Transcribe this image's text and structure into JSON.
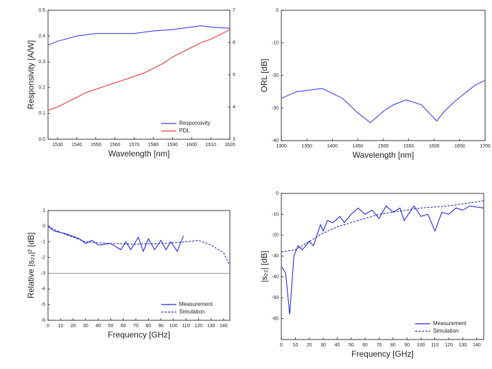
{
  "chart_data": [
    {
      "type": "line",
      "xlabel": "Wavelength  [nm]",
      "ylabel": "Responsivity  [A/W]",
      "xlim": [
        1525,
        1620
      ],
      "xticks": [
        1530,
        1540,
        1550,
        1560,
        1570,
        1580,
        1590,
        1600,
        1610,
        1620
      ],
      "ylim": [
        0,
        0.5
      ],
      "yticks": [
        {
          "value": 0,
          "label": "0.0"
        },
        0.1,
        0.2,
        0.3,
        0.4,
        0.5
      ],
      "y2lim": [
        3,
        7
      ],
      "y2ticks": [
        3,
        4,
        5,
        6,
        7
      ],
      "legend": "lower right",
      "series": [
        {
          "name": "Responsivity",
          "color": "#3b3bf0",
          "x": [
            1525,
            1530,
            1535,
            1540,
            1545,
            1550,
            1560,
            1570,
            1580,
            1590,
            1600,
            1605,
            1610,
            1620
          ],
          "values": [
            0.365,
            0.38,
            0.39,
            0.4,
            0.405,
            0.41,
            0.41,
            0.41,
            0.42,
            0.425,
            0.435,
            0.44,
            0.435,
            0.43
          ]
        },
        {
          "name": "PDL",
          "color": "#f03030",
          "axis": "y2",
          "x": [
            1525,
            1530,
            1535,
            1540,
            1545,
            1550,
            1555,
            1560,
            1565,
            1570,
            1575,
            1580,
            1585,
            1590,
            1595,
            1600,
            1605,
            1610,
            1615,
            1620
          ],
          "values": [
            3.9,
            4.0,
            4.15,
            4.3,
            4.45,
            4.55,
            4.65,
            4.75,
            4.85,
            4.95,
            5.05,
            5.2,
            5.35,
            5.55,
            5.7,
            5.85,
            6.0,
            6.1,
            6.25,
            6.4
          ]
        }
      ]
    },
    {
      "type": "line",
      "xlabel": "Wavelength  [nm]",
      "ylabel": "ORL  [dB]",
      "xlim": [
        1300,
        1700
      ],
      "xticks": [
        1300,
        1350,
        1400,
        1450,
        1500,
        1550,
        1600,
        1650,
        1700
      ],
      "ylim": [
        -40,
        0
      ],
      "yticks": [
        -40,
        -30,
        -20,
        -10,
        0
      ],
      "series": [
        {
          "name": null,
          "color": "#3b3bf0",
          "x": [
            1300,
            1330,
            1380,
            1420,
            1450,
            1475,
            1500,
            1520,
            1545,
            1575,
            1590,
            1605,
            1620,
            1640,
            1680,
            1700
          ],
          "values": [
            -27,
            -25,
            -24,
            -27,
            -31.5,
            -34.5,
            -31,
            -29,
            -27.5,
            -29,
            -31.5,
            -34,
            -31,
            -28,
            -23,
            -21.5
          ]
        }
      ]
    },
    {
      "type": "line",
      "xlabel": "Frequency  [GHz]",
      "ylabel": "Relative |s₂₁|²  [dB]",
      "xlim": [
        0,
        145
      ],
      "xticks": [
        0,
        10,
        20,
        30,
        40,
        50,
        60,
        70,
        80,
        90,
        100,
        110,
        120,
        130,
        140
      ],
      "ylim": [
        -6,
        1
      ],
      "yticks": [
        -6,
        -5,
        -4,
        -3,
        -2,
        -1,
        0,
        1
      ],
      "hlines": [
        {
          "value": -3,
          "color": "#888888"
        }
      ],
      "legend": "lower right",
      "series": [
        {
          "name": "Measurement",
          "color": "#2222dd",
          "x": [
            0,
            5,
            15,
            25,
            30,
            35,
            40,
            50,
            58,
            62,
            66,
            72,
            76,
            80,
            85,
            90,
            94,
            98,
            103,
            108
          ],
          "values": [
            0,
            -0.3,
            -0.5,
            -0.8,
            -1.1,
            -0.9,
            -1.2,
            -1.1,
            -1.5,
            -1.0,
            -1.5,
            -0.7,
            -1.6,
            -0.8,
            -1.5,
            -0.9,
            -1.5,
            -1.0,
            -1.6,
            -0.6
          ]
        },
        {
          "name": "Simulation",
          "color": "#2222dd",
          "linestyle": "dashed",
          "x": [
            0,
            10,
            20,
            30,
            50,
            70,
            90,
            110,
            120,
            130,
            140,
            145
          ],
          "values": [
            0,
            -0.4,
            -0.7,
            -1.0,
            -1.1,
            -1.15,
            -1.1,
            -1.0,
            -0.9,
            -1.2,
            -1.7,
            -2.5
          ]
        }
      ]
    },
    {
      "type": "line",
      "xlabel": "Frequency  [GHz]",
      "ylabel": "|s₂₂|  [dB]",
      "xlim": [
        0,
        145
      ],
      "xticks": [
        0,
        10,
        20,
        30,
        40,
        50,
        60,
        70,
        80,
        90,
        100,
        110,
        120,
        130,
        140
      ],
      "ylim": [
        -70,
        0
      ],
      "yticks": [
        -60,
        -50,
        -40,
        -30,
        -20,
        -10,
        0
      ],
      "legend": "lower right",
      "series": [
        {
          "name": "Measurement",
          "color": "#2222dd",
          "x": [
            0,
            3,
            6,
            9,
            12,
            15,
            20,
            23,
            28,
            30,
            33,
            37,
            42,
            45,
            50,
            55,
            60,
            65,
            70,
            75,
            80,
            85,
            88,
            95,
            100,
            105,
            110,
            115,
            120,
            125,
            130,
            135,
            145
          ],
          "values": [
            -35,
            -38,
            -58,
            -30,
            -25,
            -27,
            -23,
            -25,
            -15,
            -18,
            -13,
            -14,
            -11,
            -14,
            -10,
            -7,
            -10,
            -8,
            -12,
            -6,
            -9,
            -7,
            -13,
            -6,
            -11,
            -10,
            -18,
            -9,
            -10,
            -7,
            -8,
            -6,
            -7
          ]
        },
        {
          "name": "Simulation",
          "color": "#2222dd",
          "linestyle": "dashed",
          "x": [
            0,
            10,
            20,
            30,
            40,
            50,
            60,
            70,
            80,
            90,
            100,
            110,
            120,
            130,
            140,
            145
          ],
          "values": [
            -28,
            -27,
            -23,
            -19,
            -16,
            -14,
            -12,
            -10,
            -9,
            -8,
            -7,
            -6.5,
            -6,
            -5,
            -4,
            -3.5
          ]
        }
      ]
    }
  ]
}
